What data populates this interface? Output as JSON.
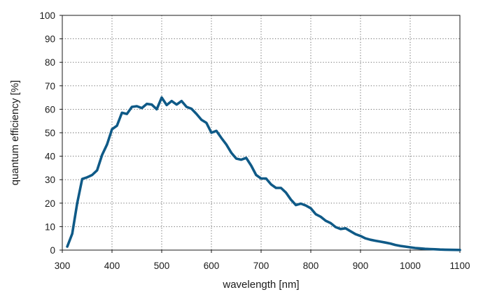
{
  "chart_data": {
    "type": "line",
    "xlabel": "wavelength [nm]",
    "ylabel": "quantum efficiency [%]",
    "xlim": [
      300,
      1100
    ],
    "ylim": [
      0,
      100
    ],
    "x_ticks": [
      300,
      400,
      500,
      600,
      700,
      800,
      900,
      1000,
      1100
    ],
    "y_ticks": [
      0,
      10,
      20,
      30,
      40,
      50,
      60,
      70,
      80,
      90,
      100
    ],
    "x_tick_labels": [
      "300",
      "400",
      "500",
      "600",
      "700",
      "800",
      "900",
      "1000",
      "1100"
    ],
    "y_tick_labels": [
      "0",
      "10",
      "20",
      "30",
      "40",
      "50",
      "60",
      "70",
      "80",
      "90",
      "100"
    ],
    "grid": true,
    "series": [
      {
        "color": "#0f5a87",
        "x": [
          310,
          320,
          330,
          340,
          350,
          360,
          370,
          380,
          390,
          400,
          410,
          420,
          430,
          440,
          450,
          460,
          470,
          480,
          490,
          500,
          510,
          520,
          530,
          540,
          550,
          560,
          570,
          580,
          590,
          600,
          610,
          620,
          630,
          640,
          650,
          660,
          670,
          680,
          690,
          700,
          710,
          720,
          730,
          740,
          750,
          760,
          770,
          780,
          790,
          800,
          810,
          820,
          830,
          840,
          850,
          860,
          870,
          880,
          890,
          900,
          910,
          920,
          930,
          940,
          950,
          960,
          970,
          980,
          990,
          1000,
          1010,
          1020,
          1030,
          1040,
          1050,
          1060,
          1070,
          1080,
          1090,
          1100
        ],
        "y": [
          1.5,
          7,
          20,
          30.3,
          31,
          32,
          34,
          40.5,
          45,
          51.5,
          53,
          58.5,
          58,
          61,
          61.3,
          60.5,
          62.3,
          62,
          60,
          65,
          61.8,
          63.5,
          62,
          63.5,
          61,
          60.2,
          58,
          55.5,
          54.2,
          50,
          50.8,
          47.8,
          45,
          41.5,
          39,
          38.5,
          39.3,
          36,
          32,
          30.5,
          30.5,
          28,
          26.5,
          26.5,
          24.5,
          21.5,
          19.2,
          19.8,
          19,
          17.8,
          15.3,
          14.2,
          12.5,
          11.5,
          9.8,
          9,
          9.3,
          8,
          6.8,
          6,
          5,
          4.4,
          4,
          3.6,
          3.2,
          2.8,
          2.2,
          1.8,
          1.5,
          1.2,
          0.9,
          0.7,
          0.55,
          0.45,
          0.35,
          0.25,
          0.18,
          0.12,
          0.08,
          0.05
        ]
      }
    ]
  }
}
